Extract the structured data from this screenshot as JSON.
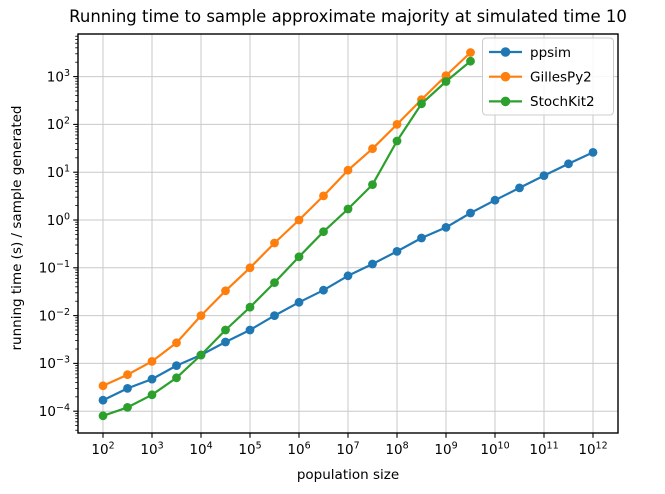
{
  "chart_data": {
    "type": "line",
    "title": "Running time to sample approximate majority at simulated time 10",
    "xlabel": "population size",
    "ylabel": "running time (s) / sample generated",
    "x_scale": "log",
    "y_scale": "log",
    "xlim": [
      31.6,
      3300000000000.0
    ],
    "ylim": [
      3.5e-05,
      7800
    ],
    "grid": true,
    "legend_position": "upper right",
    "x_tick_exponents": [
      2,
      3,
      4,
      5,
      6,
      7,
      8,
      9,
      10,
      11,
      12
    ],
    "y_tick_exponents": [
      3,
      2,
      1,
      0,
      -1,
      -2,
      -3,
      -4
    ],
    "tick_base": "10",
    "series": [
      {
        "name": "ppsim",
        "color": "#1f77b4",
        "marker": "circle",
        "x": [
          100.0,
          316.0,
          1000.0,
          3160.0,
          10000.0,
          31600.0,
          100000.0,
          316000.0,
          1000000.0,
          3160000.0,
          10000000.0,
          31600000.0,
          100000000.0,
          316000000.0,
          1000000000.0,
          3160000000.0,
          10000000000.0,
          31600000000.0,
          100000000000.0,
          316000000000.0,
          1000000000000.0
        ],
        "y": [
          0.00017,
          0.0003,
          0.00047,
          0.0009,
          0.0015,
          0.0028,
          0.005,
          0.01,
          0.019,
          0.034,
          0.068,
          0.12,
          0.22,
          0.42,
          0.7,
          1.4,
          2.6,
          4.7,
          8.5,
          15,
          26
        ]
      },
      {
        "name": "GillesPy2",
        "color": "#ff7f0e",
        "marker": "circle",
        "x": [
          100.0,
          316.0,
          1000.0,
          3160.0,
          10000.0,
          31600.0,
          100000.0,
          316000.0,
          1000000.0,
          3160000.0,
          10000000.0,
          31600000.0,
          100000000.0,
          316000000.0,
          1000000000.0,
          3160000000.0
        ],
        "y": [
          0.00034,
          0.00058,
          0.0011,
          0.0027,
          0.01,
          0.033,
          0.1,
          0.33,
          1.0,
          3.2,
          11,
          31,
          100,
          330,
          1050,
          3200
        ]
      },
      {
        "name": "StochKit2",
        "color": "#2ca02c",
        "marker": "circle",
        "x": [
          100.0,
          316.0,
          1000.0,
          3160.0,
          10000.0,
          31600.0,
          100000.0,
          316000.0,
          1000000.0,
          3160000.0,
          10000000.0,
          31600000.0,
          100000000.0,
          316000000.0,
          1000000000.0,
          3160000000.0
        ],
        "y": [
          8e-05,
          0.00012,
          0.00022,
          0.0005,
          0.0015,
          0.005,
          0.015,
          0.049,
          0.17,
          0.57,
          1.7,
          5.5,
          45,
          270,
          790,
          2100
        ]
      }
    ],
    "style": {
      "grid_color": "#c9c9c9",
      "spine_color": "#000000",
      "legend_border_color": "#cccccc",
      "background": "#ffffff"
    }
  }
}
